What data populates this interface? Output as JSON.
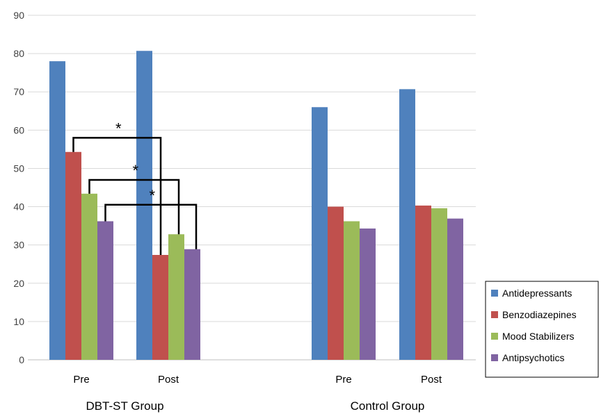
{
  "chart_data": {
    "type": "bar",
    "title": "",
    "xlabel": "",
    "ylabel": "",
    "ylim": [
      0,
      90
    ],
    "yticks": [
      0,
      10,
      20,
      30,
      40,
      50,
      60,
      70,
      80,
      90
    ],
    "grid": true,
    "legend_position": "right-bottom",
    "groups": [
      {
        "label": "DBT-ST Group",
        "categories": [
          "Pre",
          "Post"
        ]
      },
      {
        "label": "Control Group",
        "categories": [
          "Pre",
          "Post"
        ]
      }
    ],
    "series": [
      {
        "name": "Antidepressants",
        "color": "#4F81BD",
        "values": [
          78,
          80.7,
          66,
          70.7
        ]
      },
      {
        "name": "Benzodiazepines",
        "color": "#C0504D",
        "values": [
          54.3,
          27.4,
          40,
          40.3
        ]
      },
      {
        "name": "Mood Stabilizers",
        "color": "#9BBB59",
        "values": [
          43.4,
          32.8,
          36.2,
          39.6
        ]
      },
      {
        "name": "Antipsychotics",
        "color": "#8064A2",
        "values": [
          36.2,
          28.9,
          34.3,
          36.9
        ]
      }
    ],
    "annotations": [
      {
        "text": "*",
        "from": "Benzodiazepines Pre",
        "to": "Benzodiazepines Post",
        "level": 58
      },
      {
        "text": "*",
        "from": "Mood Stabilizers Pre",
        "to": "Mood Stabilizers Post",
        "level": 47
      },
      {
        "text": "*",
        "from": "Antipsychotics Pre",
        "to": "Antipsychotics Post",
        "level": 40.5
      }
    ]
  }
}
